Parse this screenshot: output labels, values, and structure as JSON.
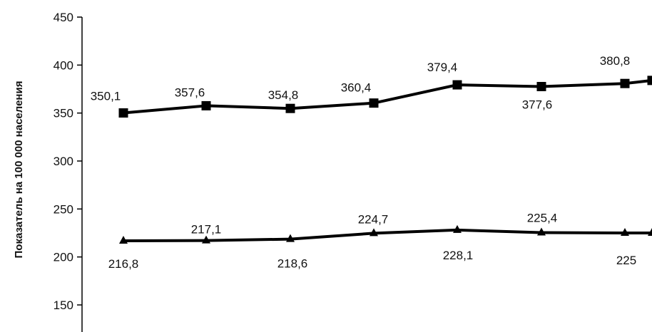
{
  "chart_data": {
    "type": "line",
    "ylabel": "Показатель на 100 000 населения",
    "xlabel": "",
    "ylim": [
      130,
      450
    ],
    "yticks": [
      "450",
      "400",
      "350",
      "300",
      "250",
      "200",
      "150"
    ],
    "grid": false,
    "legend": "none",
    "series": [
      {
        "marker": "square",
        "values": [
          350.1,
          357.6,
          354.8,
          360.4,
          379.4,
          377.6,
          380.8,
          384
        ],
        "labels": [
          "350,1",
          "357,6",
          "354,8",
          "360,4",
          "379,4",
          "377,6",
          "380,8",
          ""
        ]
      },
      {
        "marker": "triangle",
        "values": [
          216.8,
          217.1,
          218.6,
          224.7,
          228.1,
          225.4,
          225,
          225
        ],
        "labels": [
          "216,8",
          "217,1",
          "218,6",
          "224,7",
          "228,1",
          "225,4",
          "225",
          ""
        ]
      }
    ],
    "colors": {
      "line": "#000000",
      "axis": "#000000",
      "text": "#111111"
    }
  }
}
